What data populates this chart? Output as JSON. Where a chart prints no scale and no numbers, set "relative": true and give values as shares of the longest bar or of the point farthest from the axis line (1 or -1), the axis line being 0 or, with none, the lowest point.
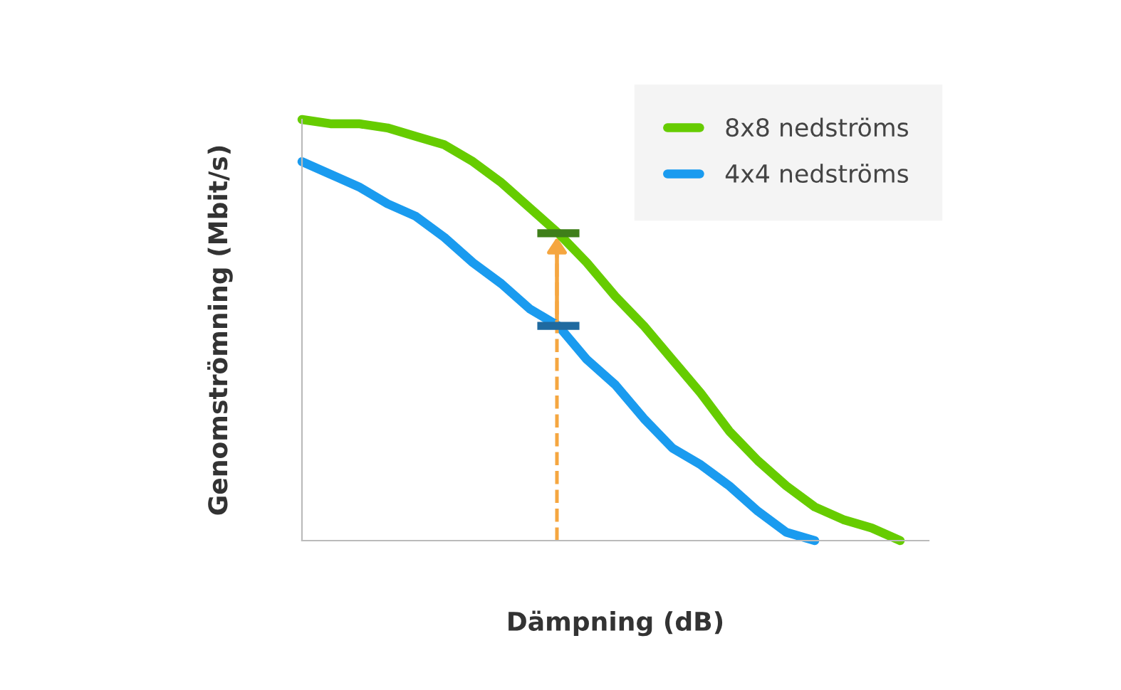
{
  "chart_data": {
    "type": "line",
    "relative": true,
    "xlabel": "Dämpning (dB)",
    "ylabel": "Genomströmning (Mbit/s)",
    "categories": [
      null,
      null,
      null,
      null,
      null,
      null,
      null,
      null,
      null,
      null,
      null,
      null,
      null,
      null,
      null,
      null,
      null,
      null,
      null,
      null,
      null,
      null
    ],
    "series": [
      {
        "name": "8x8 nedströms",
        "color": "#66cc00",
        "values": [
          1.0,
          0.99,
          0.99,
          0.98,
          0.96,
          0.94,
          0.9,
          0.85,
          0.79,
          0.73,
          0.66,
          0.58,
          0.51,
          0.43,
          0.35,
          0.26,
          0.19,
          0.13,
          0.08,
          0.05,
          0.03,
          0.0
        ]
      },
      {
        "name": "4x4 nedströms",
        "color": "#1a9bef",
        "values": [
          0.9,
          0.87,
          0.84,
          0.8,
          0.77,
          0.72,
          0.66,
          0.61,
          0.55,
          0.51,
          0.43,
          0.37,
          0.29,
          0.22,
          0.18,
          0.13,
          0.07,
          0.02,
          0.0,
          null,
          null,
          null
        ]
      }
    ],
    "legend": "top right",
    "grid": false,
    "marker": "none",
    "line_style": "solid"
  }
}
